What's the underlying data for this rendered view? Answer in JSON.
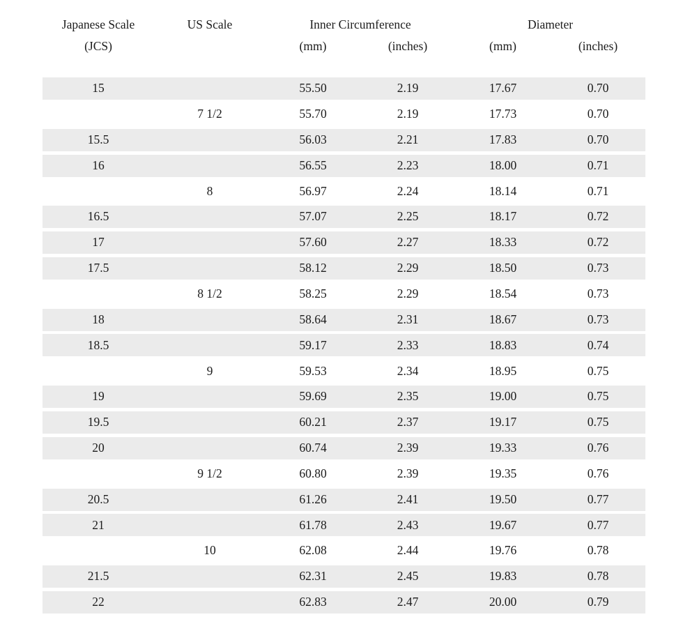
{
  "colors": {
    "row_shade": "#ebebeb",
    "text": "#1c1c1c",
    "background": "#ffffff"
  },
  "table": {
    "header": {
      "japanese_scale_line1": "Japanese Scale",
      "japanese_scale_line2": "(JCS)",
      "us_scale": "US Scale",
      "inner_circumference": "Inner Circumference",
      "diameter": "Diameter",
      "unit_mm": "(mm)",
      "unit_inches": "(inches)"
    },
    "rows": [
      {
        "jcs": "15",
        "us": "",
        "ic_mm": "55.50",
        "ic_in": "2.19",
        "d_mm": "17.67",
        "d_in": "0.70",
        "shaded": true
      },
      {
        "jcs": "",
        "us": "7 1/2",
        "ic_mm": "55.70",
        "ic_in": "2.19",
        "d_mm": "17.73",
        "d_in": "0.70",
        "shaded": false
      },
      {
        "jcs": "15.5",
        "us": "",
        "ic_mm": "56.03",
        "ic_in": "2.21",
        "d_mm": "17.83",
        "d_in": "0.70",
        "shaded": true
      },
      {
        "jcs": "16",
        "us": "",
        "ic_mm": "56.55",
        "ic_in": "2.23",
        "d_mm": "18.00",
        "d_in": "0.71",
        "shaded": true
      },
      {
        "jcs": "",
        "us": "8",
        "ic_mm": "56.97",
        "ic_in": "2.24",
        "d_mm": "18.14",
        "d_in": "0.71",
        "shaded": false
      },
      {
        "jcs": "16.5",
        "us": "",
        "ic_mm": "57.07",
        "ic_in": "2.25",
        "d_mm": "18.17",
        "d_in": "0.72",
        "shaded": true
      },
      {
        "jcs": "17",
        "us": "",
        "ic_mm": "57.60",
        "ic_in": "2.27",
        "d_mm": "18.33",
        "d_in": "0.72",
        "shaded": true
      },
      {
        "jcs": "17.5",
        "us": "",
        "ic_mm": "58.12",
        "ic_in": "2.29",
        "d_mm": "18.50",
        "d_in": "0.73",
        "shaded": true
      },
      {
        "jcs": "",
        "us": "8 1/2",
        "ic_mm": "58.25",
        "ic_in": "2.29",
        "d_mm": "18.54",
        "d_in": "0.73",
        "shaded": false
      },
      {
        "jcs": "18",
        "us": "",
        "ic_mm": "58.64",
        "ic_in": "2.31",
        "d_mm": "18.67",
        "d_in": "0.73",
        "shaded": true
      },
      {
        "jcs": "18.5",
        "us": "",
        "ic_mm": "59.17",
        "ic_in": "2.33",
        "d_mm": "18.83",
        "d_in": "0.74",
        "shaded": true
      },
      {
        "jcs": "",
        "us": "9",
        "ic_mm": "59.53",
        "ic_in": "2.34",
        "d_mm": "18.95",
        "d_in": "0.75",
        "shaded": false
      },
      {
        "jcs": "19",
        "us": "",
        "ic_mm": "59.69",
        "ic_in": "2.35",
        "d_mm": "19.00",
        "d_in": "0.75",
        "shaded": true
      },
      {
        "jcs": "19.5",
        "us": "",
        "ic_mm": "60.21",
        "ic_in": "2.37",
        "d_mm": "19.17",
        "d_in": "0.75",
        "shaded": true
      },
      {
        "jcs": "20",
        "us": "",
        "ic_mm": "60.74",
        "ic_in": "2.39",
        "d_mm": "19.33",
        "d_in": "0.76",
        "shaded": true
      },
      {
        "jcs": "",
        "us": "9 1/2",
        "ic_mm": "60.80",
        "ic_in": "2.39",
        "d_mm": "19.35",
        "d_in": "0.76",
        "shaded": false
      },
      {
        "jcs": "20.5",
        "us": "",
        "ic_mm": "61.26",
        "ic_in": "2.41",
        "d_mm": "19.50",
        "d_in": "0.77",
        "shaded": true
      },
      {
        "jcs": "21",
        "us": "",
        "ic_mm": "61.78",
        "ic_in": "2.43",
        "d_mm": "19.67",
        "d_in": "0.77",
        "shaded": true
      },
      {
        "jcs": "",
        "us": "10",
        "ic_mm": "62.08",
        "ic_in": "2.44",
        "d_mm": "19.76",
        "d_in": "0.78",
        "shaded": false
      },
      {
        "jcs": "21.5",
        "us": "",
        "ic_mm": "62.31",
        "ic_in": "2.45",
        "d_mm": "19.83",
        "d_in": "0.78",
        "shaded": true
      },
      {
        "jcs": "22",
        "us": "",
        "ic_mm": "62.83",
        "ic_in": "2.47",
        "d_mm": "20.00",
        "d_in": "0.79",
        "shaded": true
      }
    ]
  }
}
